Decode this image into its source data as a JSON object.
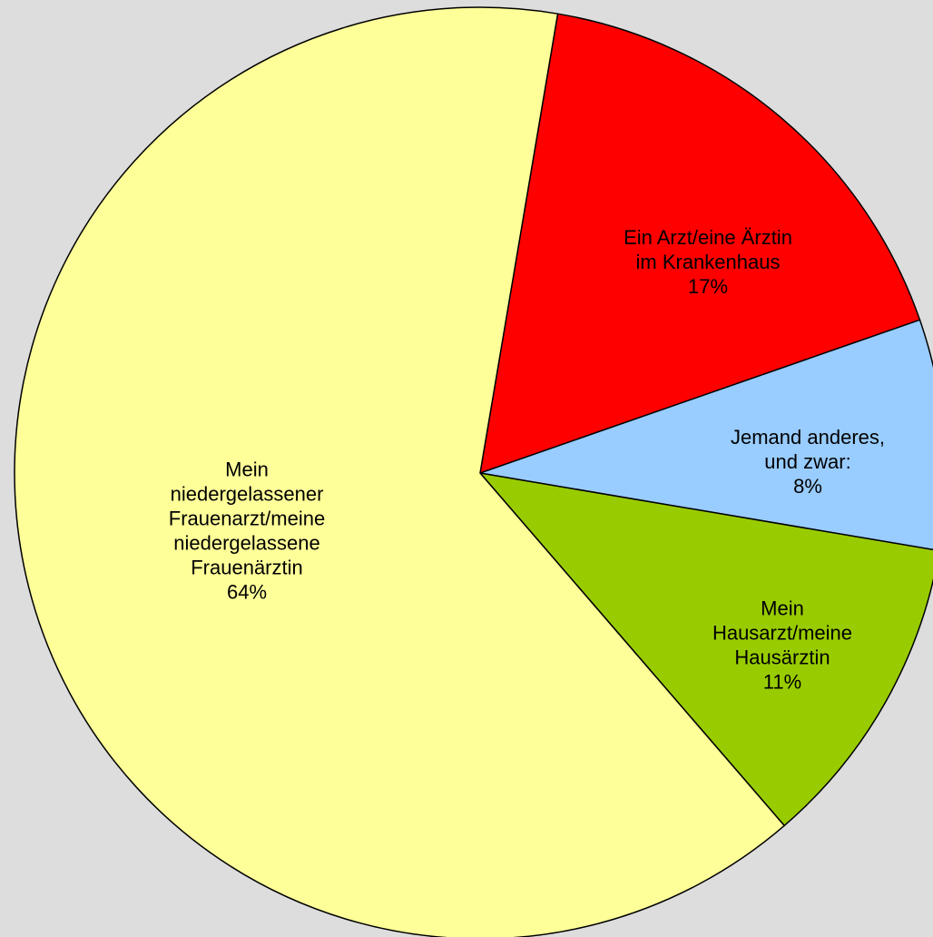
{
  "chart_data": {
    "type": "pie",
    "categories": [
      "Ein Arzt/eine Ärztin\nim Krankenhaus",
      "Jemand anderes,\nund zwar:",
      "Mein\nHausarzt/meine\nHausärztin",
      "Mein\nniedergelassener\nFrauenarzt/meine\nniedergelassene\nFrauenärztin"
    ],
    "values": [
      17,
      8,
      11,
      64
    ],
    "value_labels": [
      "17%",
      "8%",
      "11%",
      "64%"
    ],
    "colors": [
      "#ff0000",
      "#99ccff",
      "#99cc00",
      "#ffff99"
    ]
  }
}
